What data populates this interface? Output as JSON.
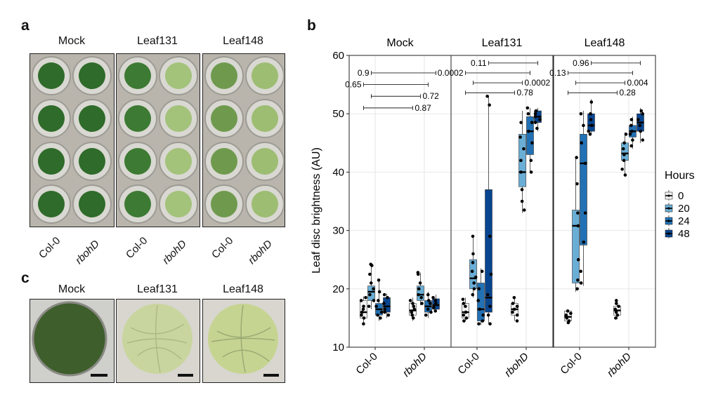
{
  "figure": {
    "panel_a": {
      "letter": "a",
      "columns": [
        "Mock",
        "Leaf131",
        "Leaf148"
      ],
      "genotypes": [
        "Col-0",
        "rbohD"
      ]
    },
    "panel_c": {
      "letter": "c",
      "columns": [
        "Mock",
        "Leaf131",
        "Leaf148"
      ]
    },
    "panel_b": {
      "letter": "b"
    }
  },
  "chart_data": {
    "type": "box",
    "ylabel": "Leaf disc brightness (AU)",
    "ylim": [
      10,
      60
    ],
    "yticks": [
      10,
      20,
      30,
      40,
      50,
      60
    ],
    "facets": [
      "Mock",
      "Leaf131",
      "Leaf148"
    ],
    "categories": [
      "Col-0",
      "rbohD"
    ],
    "legend": {
      "title": "Hours",
      "entries": [
        "0",
        "20",
        "24",
        "48"
      ],
      "colors": [
        "#f2f2f2",
        "#6aaed6",
        "#2271b5",
        "#08458f"
      ]
    },
    "series": [
      {
        "name": "0",
        "boxes": [
          {
            "facet": "Mock",
            "category": "Col-0",
            "q1": 15,
            "median": 16,
            "q3": 18,
            "low": 13.8,
            "high": 18.7,
            "points": [
              14,
              15,
              15.5,
              16,
              16.5,
              17,
              18,
              18.5
            ]
          },
          {
            "facet": "Mock",
            "category": "rbohD",
            "q1": 15.5,
            "median": 16.3,
            "q3": 17.5,
            "low": 14.5,
            "high": 18.5,
            "points": [
              15,
              15.5,
              16,
              16.5,
              17,
              18,
              17.5
            ]
          },
          {
            "facet": "Leaf131",
            "category": "Col-0",
            "q1": 15,
            "median": 16,
            "q3": 17.5,
            "low": 14.5,
            "high": 18.5,
            "points": [
              14.5,
              15,
              15.5,
              16,
              17,
              17.5,
              18.2
            ]
          },
          {
            "facet": "Leaf131",
            "category": "rbohD",
            "q1": 15.5,
            "median": 16.5,
            "q3": 17.5,
            "low": 14.5,
            "high": 18.7,
            "points": [
              14.5,
              15.5,
              16,
              16.5,
              17,
              17.5,
              18.5
            ]
          },
          {
            "facet": "Leaf148",
            "category": "Col-0",
            "q1": 14.5,
            "median": 15.2,
            "q3": 16.2,
            "low": 14,
            "high": 16.5,
            "points": [
              14.2,
              14.5,
              15,
              15.5,
              15.8,
              16.2
            ]
          },
          {
            "facet": "Leaf148",
            "category": "rbohD",
            "q1": 15.5,
            "median": 16.3,
            "q3": 17,
            "low": 14.8,
            "high": 18,
            "points": [
              15,
              15.5,
              16,
              16.5,
              17,
              17.5,
              18
            ]
          }
        ]
      },
      {
        "name": "20",
        "boxes": [
          {
            "facet": "Mock",
            "category": "Col-0",
            "q1": 18,
            "median": 19.5,
            "q3": 20.5,
            "low": 16.5,
            "high": 24.2,
            "points": [
              17,
              18,
              19,
              20,
              21,
              22.5,
              24,
              24.2
            ]
          },
          {
            "facet": "Mock",
            "category": "rbohD",
            "q1": 18,
            "median": 19,
            "q3": 20.5,
            "low": 17.2,
            "high": 22.8,
            "points": [
              17.5,
              18.5,
              19,
              20,
              21,
              22.5,
              22.8
            ]
          },
          {
            "facet": "Leaf131",
            "category": "Col-0",
            "q1": 20,
            "median": 21.8,
            "q3": 25,
            "low": 18.5,
            "high": 29,
            "points": [
              19,
              20,
              21,
              22,
              23,
              24.5,
              26,
              29
            ]
          },
          {
            "facet": "Leaf131",
            "category": "rbohD",
            "q1": 37.5,
            "median": 40,
            "q3": 46.5,
            "low": 33,
            "high": 50.5,
            "points": [
              33.5,
              35,
              37,
              40,
              42,
              44,
              46,
              48.5
            ]
          },
          {
            "facet": "Leaf148",
            "category": "Col-0",
            "q1": 21,
            "median": 30.8,
            "q3": 33.5,
            "low": 19.5,
            "high": 42.5,
            "points": [
              20,
              21.5,
              25,
              30.8,
              33,
              38,
              42.5
            ]
          },
          {
            "facet": "Leaf148",
            "category": "rbohD",
            "q1": 42,
            "median": 43.2,
            "q3": 45,
            "low": 39.5,
            "high": 46.8,
            "points": [
              39.5,
              40.5,
              42,
              43,
              44,
              45,
              46.5
            ]
          }
        ]
      },
      {
        "name": "24",
        "boxes": [
          {
            "facet": "Mock",
            "category": "Col-0",
            "q1": 15.5,
            "median": 16.5,
            "q3": 17.5,
            "low": 14.5,
            "high": 21.5,
            "points": [
              15,
              15.5,
              16,
              17,
              18,
              19.5,
              21.5
            ]
          },
          {
            "facet": "Mock",
            "category": "rbohD",
            "q1": 16,
            "median": 17,
            "q3": 18,
            "low": 15,
            "high": 19.5,
            "points": [
              15.5,
              16,
              16.5,
              17.5,
              18,
              19
            ]
          },
          {
            "facet": "Leaf131",
            "category": "Col-0",
            "q1": 14.5,
            "median": 16.5,
            "q3": 21,
            "low": 13.8,
            "high": 23.5,
            "points": [
              14,
              14.5,
              15.5,
              16.5,
              18,
              20,
              23
            ]
          },
          {
            "facet": "Leaf131",
            "category": "rbohD",
            "q1": 43,
            "median": 47,
            "q3": 49.5,
            "low": 40,
            "high": 51,
            "points": [
              40,
              42,
              45,
              47,
              48.5,
              50,
              51
            ]
          },
          {
            "facet": "Leaf148",
            "category": "Col-0",
            "q1": 27.5,
            "median": 41.5,
            "q3": 46.5,
            "low": 20.5,
            "high": 50.5,
            "points": [
              21,
              23,
              28,
              33,
              41.5,
              45,
              48,
              50
            ]
          },
          {
            "facet": "Leaf148",
            "category": "rbohD",
            "q1": 46,
            "median": 47,
            "q3": 48,
            "low": 44,
            "high": 49.5,
            "points": [
              44.5,
              45.5,
              46.5,
              47,
              48,
              49
            ]
          }
        ]
      },
      {
        "name": "48",
        "boxes": [
          {
            "facet": "Mock",
            "category": "Col-0",
            "q1": 16,
            "median": 17,
            "q3": 18.5,
            "low": 15,
            "high": 19.2,
            "points": [
              15.5,
              16,
              16.5,
              17.5,
              18.5,
              19
            ]
          },
          {
            "facet": "Mock",
            "category": "rbohD",
            "q1": 16.5,
            "median": 17.2,
            "q3": 18.3,
            "low": 16,
            "high": 19,
            "points": [
              16.2,
              16.8,
              17.5,
              18,
              18.5
            ]
          },
          {
            "facet": "Leaf131",
            "category": "Col-0",
            "q1": 16,
            "median": 18.5,
            "q3": 37,
            "low": 14,
            "high": 53,
            "points": [
              14,
              15.5,
              17,
              19,
              22.5,
              29,
              51.5,
              53
            ]
          },
          {
            "facet": "Leaf131",
            "category": "rbohD",
            "q1": 48.5,
            "median": 49.5,
            "q3": 50.5,
            "low": 47,
            "high": 51,
            "points": [
              47.5,
              48.5,
              49,
              49.5,
              50,
              50.5
            ]
          },
          {
            "facet": "Leaf148",
            "category": "Col-0",
            "q1": 47,
            "median": 48,
            "q3": 50,
            "low": 46.5,
            "high": 52.5,
            "points": [
              46.5,
              47,
              48,
              49,
              50,
              52
            ]
          },
          {
            "facet": "Leaf148",
            "category": "rbohD",
            "q1": 47,
            "median": 48.5,
            "q3": 50,
            "low": 45,
            "high": 51,
            "points": [
              45.5,
              47,
              48,
              49,
              50,
              50.5
            ]
          }
        ]
      }
    ],
    "brackets": [
      {
        "facet": "Mock",
        "label": "0.9",
        "from_group": "Col-0",
        "from_hour": "20",
        "to_group": "rbohD",
        "to_hour": "48",
        "label_side": "left",
        "y": 57
      },
      {
        "facet": "Mock",
        "label": "0.65",
        "from_group": "Col-0",
        "from_hour": "0",
        "to_group": "rbohD",
        "to_hour": "24",
        "label_side": "left",
        "y": 55
      },
      {
        "facet": "Mock",
        "label": "0.72",
        "from_group": "Col-0",
        "from_hour": "20",
        "to_group": "rbohD",
        "to_hour": "20",
        "label_side": "right",
        "y": 53
      },
      {
        "facet": "Mock",
        "label": "0.87",
        "from_group": "Col-0",
        "from_hour": "0",
        "to_group": "rbohD",
        "to_hour": "0",
        "label_side": "right",
        "y": 51
      },
      {
        "facet": "Leaf131",
        "label": "0.11",
        "from_group": "Col-0",
        "from_hour": "48",
        "to_group": "rbohD",
        "to_hour": "48",
        "label_side": "left",
        "y": 58.7
      },
      {
        "facet": "Leaf131",
        "label": "0.0002",
        "from_group": "Col-0",
        "from_hour": "0",
        "to_group": "rbohD",
        "to_hour": "24",
        "label_side": "left",
        "y": 57
      },
      {
        "facet": "Leaf131",
        "label": "0.0002",
        "from_group": "Col-0",
        "from_hour": "20",
        "to_group": "rbohD",
        "to_hour": "20",
        "label_side": "right",
        "y": 55.3
      },
      {
        "facet": "Leaf131",
        "label": "0.78",
        "from_group": "Col-0",
        "from_hour": "0",
        "to_group": "rbohD",
        "to_hour": "0",
        "label_side": "right",
        "y": 53.6
      },
      {
        "facet": "Leaf148",
        "label": "0.96",
        "from_group": "Col-0",
        "from_hour": "48",
        "to_group": "rbohD",
        "to_hour": "48",
        "label_side": "left",
        "y": 58.7
      },
      {
        "facet": "Leaf148",
        "label": "0.13",
        "from_group": "Col-0",
        "from_hour": "0",
        "to_group": "rbohD",
        "to_hour": "24",
        "label_side": "left",
        "y": 57
      },
      {
        "facet": "Leaf148",
        "label": "0.004",
        "from_group": "Col-0",
        "from_hour": "20",
        "to_group": "rbohD",
        "to_hour": "20",
        "label_side": "right",
        "y": 55.3
      },
      {
        "facet": "Leaf148",
        "label": "0.28",
        "from_group": "Col-0",
        "from_hour": "0",
        "to_group": "rbohD",
        "to_hour": "0",
        "label_side": "right",
        "y": 53.6
      }
    ]
  }
}
